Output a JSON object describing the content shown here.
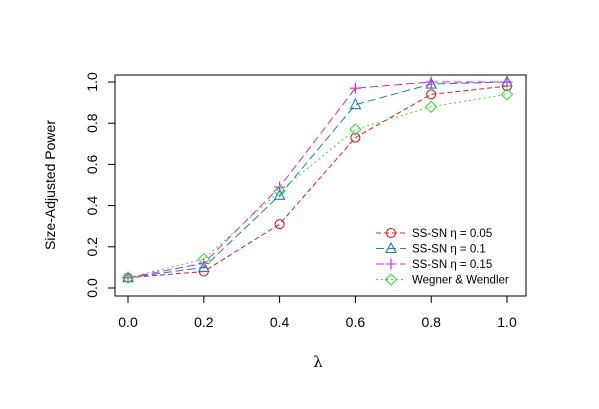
{
  "chart_data": {
    "type": "line",
    "title": "",
    "xlabel": "λ",
    "ylabel": "Size-Adjusted Power",
    "x": [
      0.0,
      0.2,
      0.4,
      0.6,
      0.8,
      1.0
    ],
    "xlim": [
      0.0,
      1.0
    ],
    "ylim": [
      0.0,
      1.0
    ],
    "x_ticks": [
      "0.0",
      "0.2",
      "0.4",
      "0.6",
      "0.8",
      "1.0"
    ],
    "y_ticks": [
      "0.0",
      "0.2",
      "0.4",
      "0.6",
      "0.8",
      "1.0"
    ],
    "grid": false,
    "legend_position": "bottom-right",
    "series": [
      {
        "name": "SS-SN η = 0.05",
        "label_main": "SS-SN ",
        "label_eta": "η = 0.05",
        "color": "#e41a1c",
        "marker": "circle",
        "dash": "dashed",
        "values": [
          0.05,
          0.08,
          0.31,
          0.73,
          0.94,
          0.98
        ]
      },
      {
        "name": "SS-SN η = 0.1",
        "label_main": "SS-SN ",
        "label_eta": "η = 0.1",
        "color": "#1f78d4",
        "marker": "triangle",
        "dash": "longdash",
        "values": [
          0.05,
          0.1,
          0.45,
          0.89,
          0.99,
          1.0
        ]
      },
      {
        "name": "SS-SN η = 0.15",
        "label_main": "SS-SN ",
        "label_eta": "η = 0.15",
        "color": "#e21de2",
        "marker": "plus",
        "dash": "longdash",
        "values": [
          0.05,
          0.12,
          0.49,
          0.97,
          1.0,
          1.0
        ]
      },
      {
        "name": "Wegner & Wendler",
        "label_main": "Wegner & Wendler",
        "label_eta": "",
        "color": "#33e033",
        "marker": "diamond",
        "dash": "dotted",
        "values": [
          0.05,
          0.14,
          0.47,
          0.77,
          0.88,
          0.94
        ]
      }
    ]
  }
}
